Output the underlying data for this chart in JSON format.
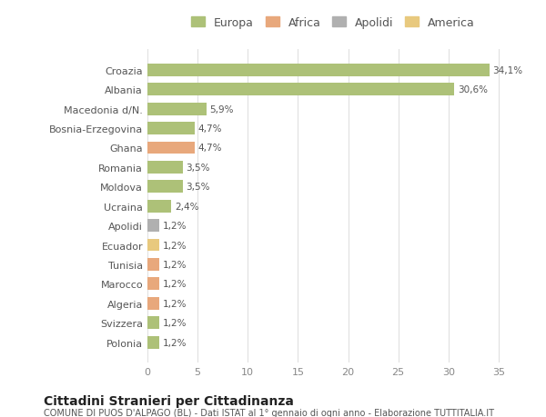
{
  "categories": [
    "Polonia",
    "Svizzera",
    "Algeria",
    "Marocco",
    "Tunisia",
    "Ecuador",
    "Apolidi",
    "Ucraina",
    "Moldova",
    "Romania",
    "Ghana",
    "Bosnia-Erzegovina",
    "Macedonia d/N.",
    "Albania",
    "Croazia"
  ],
  "values": [
    1.2,
    1.2,
    1.2,
    1.2,
    1.2,
    1.2,
    1.2,
    2.4,
    3.5,
    3.5,
    4.7,
    4.7,
    5.9,
    30.6,
    34.1
  ],
  "colors": [
    "#adc178",
    "#adc178",
    "#e8a87c",
    "#e8a87c",
    "#e8a87c",
    "#e8c97e",
    "#b0b0b0",
    "#adc178",
    "#adc178",
    "#adc178",
    "#e8a87c",
    "#adc178",
    "#adc178",
    "#adc178",
    "#adc178"
  ],
  "labels": [
    "1,2%",
    "1,2%",
    "1,2%",
    "1,2%",
    "1,2%",
    "1,2%",
    "1,2%",
    "2,4%",
    "3,5%",
    "3,5%",
    "4,7%",
    "4,7%",
    "5,9%",
    "30,6%",
    "34,1%"
  ],
  "legend_labels": [
    "Europa",
    "Africa",
    "Apolidi",
    "America"
  ],
  "legend_colors": [
    "#adc178",
    "#e8a87c",
    "#b0b0b0",
    "#e8c97e"
  ],
  "title": "Cittadini Stranieri per Cittadinanza",
  "subtitle": "COMUNE DI PUOS D'ALPAGO (BL) - Dati ISTAT al 1° gennaio di ogni anno - Elaborazione TUTTITALIA.IT",
  "xlim": [
    0,
    37
  ],
  "xticks": [
    0,
    5,
    10,
    15,
    20,
    25,
    30,
    35
  ],
  "background_color": "#ffffff",
  "grid_color": "#e0e0e0",
  "bar_height": 0.65
}
